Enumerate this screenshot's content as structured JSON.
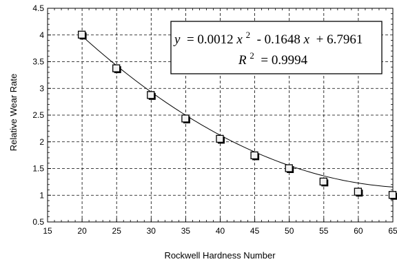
{
  "chart_data": {
    "type": "scatter",
    "xlabel": "Rockwell Hardness Number",
    "ylabel": "Relative Wear Rate",
    "xlim": [
      15,
      65
    ],
    "ylim": [
      0.5,
      4.5
    ],
    "x_ticks": [
      "15",
      "20",
      "25",
      "30",
      "35",
      "40",
      "45",
      "50",
      "55",
      "60",
      "65"
    ],
    "y_ticks": [
      "0.5",
      "1",
      "1.5",
      "2",
      "2.5",
      "3",
      "3.5",
      "4",
      "4.5"
    ],
    "grid": true,
    "series": [
      {
        "x": [
          20,
          25,
          30,
          35,
          40,
          45,
          50,
          55,
          60,
          65
        ],
        "y": [
          4.0,
          3.37,
          2.87,
          2.43,
          2.05,
          1.74,
          1.5,
          1.25,
          1.06,
          1.0
        ],
        "marker": "square",
        "trendline": {
          "type": "polynomial",
          "order": 2,
          "coefficients": [
            0.0012,
            -0.1648,
            6.7961
          ]
        }
      }
    ],
    "annotation": {
      "equation_lhs": "y",
      "equation_eq": " = 0.0012",
      "equation_x1": "x",
      "equation_sup1": "2",
      "equation_mid": " - 0.1648",
      "equation_x2": "x",
      "equation_tail": " + 6.7961",
      "r2_lhs": "R",
      "r2_sup": "2",
      "r2_value": " = 0.9994"
    }
  }
}
